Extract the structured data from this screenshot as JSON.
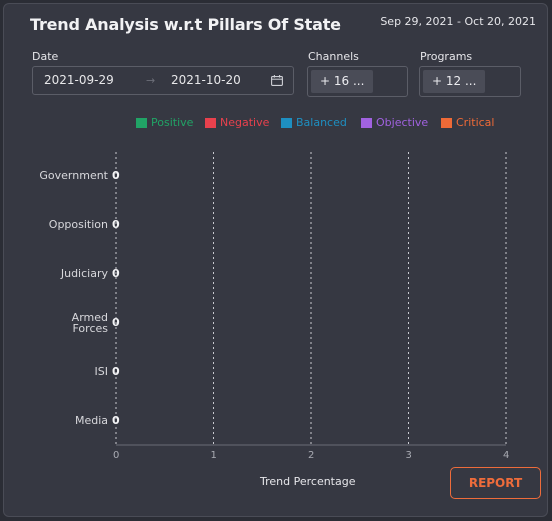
{
  "header": {
    "title": "Trend Analysis w.r.t Pillars Of State",
    "date_range": "Sep 29, 2021 - Oct 20, 2021"
  },
  "filters": {
    "date_label": "Date",
    "start_date": "2021-09-29",
    "end_date": "2021-10-20",
    "arrow": "→",
    "channels_label": "Channels",
    "channels_value": "+ 16 ...",
    "programs_label": "Programs",
    "programs_value": "+ 12 ..."
  },
  "legend": [
    {
      "label": "Positive",
      "color": "#21a366"
    },
    {
      "label": "Negative",
      "color": "#e8414d"
    },
    {
      "label": "Balanced",
      "color": "#1e8fc1"
    },
    {
      "label": "Objective",
      "color": "#a162e0"
    },
    {
      "label": "Critical",
      "color": "#ee6a37"
    }
  ],
  "chart_data": {
    "type": "bar",
    "orientation": "horizontal",
    "categories": [
      "Government",
      "Opposition",
      "Judiciary",
      "Armed Forces",
      "ISI",
      "Media"
    ],
    "values": [
      0,
      0,
      0,
      0,
      0,
      0
    ],
    "data_labels": [
      "0",
      "0",
      "0",
      "0",
      "0",
      "0"
    ],
    "x_ticks": [
      "0",
      "1",
      "2",
      "3",
      "4"
    ],
    "xlabel": "Trend Percentage",
    "xlim": [
      0,
      4
    ],
    "grid": "vertical dotted"
  },
  "actions": {
    "report_label": "REPORT"
  }
}
